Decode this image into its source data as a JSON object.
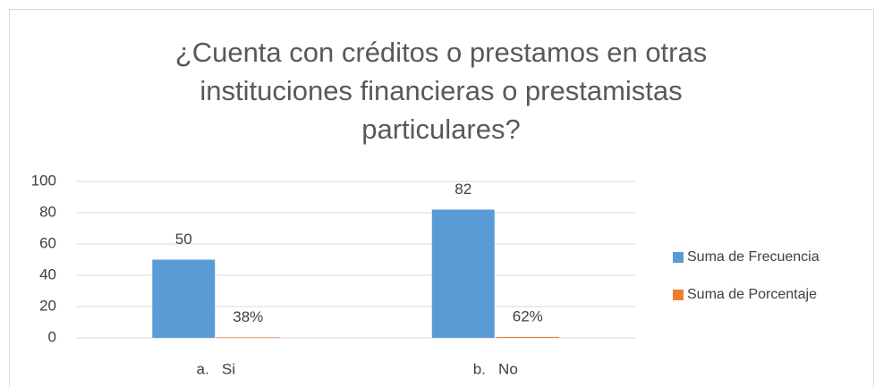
{
  "chart_data": {
    "type": "bar",
    "title": [
      "¿Cuenta con créditos o prestamos en otras",
      "instituciones financieras o prestamistas",
      "particulares?"
    ],
    "categories": [
      "a.   Si",
      "b.   No"
    ],
    "series": [
      {
        "name": "Suma de Frecuencia",
        "color": "#5b9bd5",
        "values": [
          50,
          82
        ]
      },
      {
        "name": "Suma de Porcentaje",
        "color": "#ed7d31",
        "values": [
          0.38,
          0.62
        ],
        "value_labels": [
          "38%",
          "62%"
        ]
      }
    ],
    "ylim": [
      0,
      100
    ],
    "yticks": [
      0,
      20,
      40,
      60,
      80,
      100
    ],
    "grid": true,
    "legend": "right"
  }
}
